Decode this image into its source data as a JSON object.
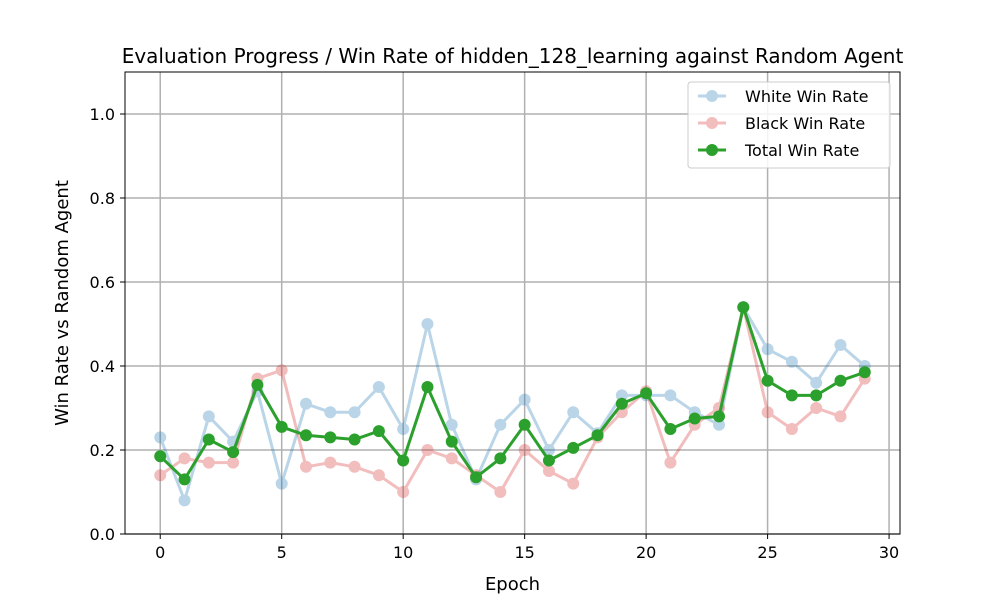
{
  "chart_data": {
    "type": "line",
    "title": "Evaluation Progress / Win Rate of hidden_128_learning against Random Agent",
    "xlabel": "Epoch",
    "ylabel": "Win Rate vs Random Agent",
    "xlim": [
      -1.45,
      30.45
    ],
    "ylim": [
      0.0,
      1.1
    ],
    "xticks": [
      0,
      5,
      10,
      15,
      20,
      25,
      30
    ],
    "yticks": [
      0.0,
      0.2,
      0.4,
      0.6,
      0.8,
      1.0
    ],
    "xtick_labels": [
      "0",
      "5",
      "10",
      "15",
      "20",
      "25",
      "30"
    ],
    "ytick_labels": [
      "0.0",
      "0.2",
      "0.4",
      "0.6",
      "0.8",
      "1.0"
    ],
    "grid": true,
    "legend_position": "top-right",
    "x": [
      0,
      1,
      2,
      3,
      4,
      5,
      6,
      7,
      8,
      9,
      10,
      11,
      12,
      13,
      14,
      15,
      16,
      17,
      18,
      19,
      20,
      21,
      22,
      23,
      24,
      25,
      26,
      27,
      28,
      29
    ],
    "series": [
      {
        "name": "White Win Rate",
        "color": "#1f77b4",
        "opacity": 0.3,
        "values": [
          0.23,
          0.08,
          0.28,
          0.22,
          0.34,
          0.12,
          0.31,
          0.29,
          0.29,
          0.35,
          0.25,
          0.5,
          0.26,
          0.13,
          0.26,
          0.32,
          0.2,
          0.29,
          0.24,
          0.33,
          0.33,
          0.33,
          0.29,
          0.26,
          0.54,
          0.44,
          0.41,
          0.36,
          0.45,
          0.4
        ]
      },
      {
        "name": "Black Win Rate",
        "color": "#d62728",
        "opacity": 0.3,
        "values": [
          0.14,
          0.18,
          0.17,
          0.17,
          0.37,
          0.39,
          0.16,
          0.17,
          0.16,
          0.14,
          0.1,
          0.2,
          0.18,
          0.14,
          0.1,
          0.2,
          0.15,
          0.12,
          0.23,
          0.29,
          0.34,
          0.17,
          0.26,
          0.3,
          0.54,
          0.29,
          0.25,
          0.3,
          0.28,
          0.37
        ]
      },
      {
        "name": "Total Win Rate",
        "color": "#2ca02c",
        "opacity": 1.0,
        "values": [
          0.185,
          0.13,
          0.225,
          0.195,
          0.355,
          0.255,
          0.235,
          0.23,
          0.225,
          0.245,
          0.175,
          0.35,
          0.22,
          0.135,
          0.18,
          0.26,
          0.175,
          0.205,
          0.235,
          0.31,
          0.335,
          0.25,
          0.275,
          0.28,
          0.54,
          0.365,
          0.33,
          0.33,
          0.365,
          0.385
        ]
      }
    ]
  }
}
